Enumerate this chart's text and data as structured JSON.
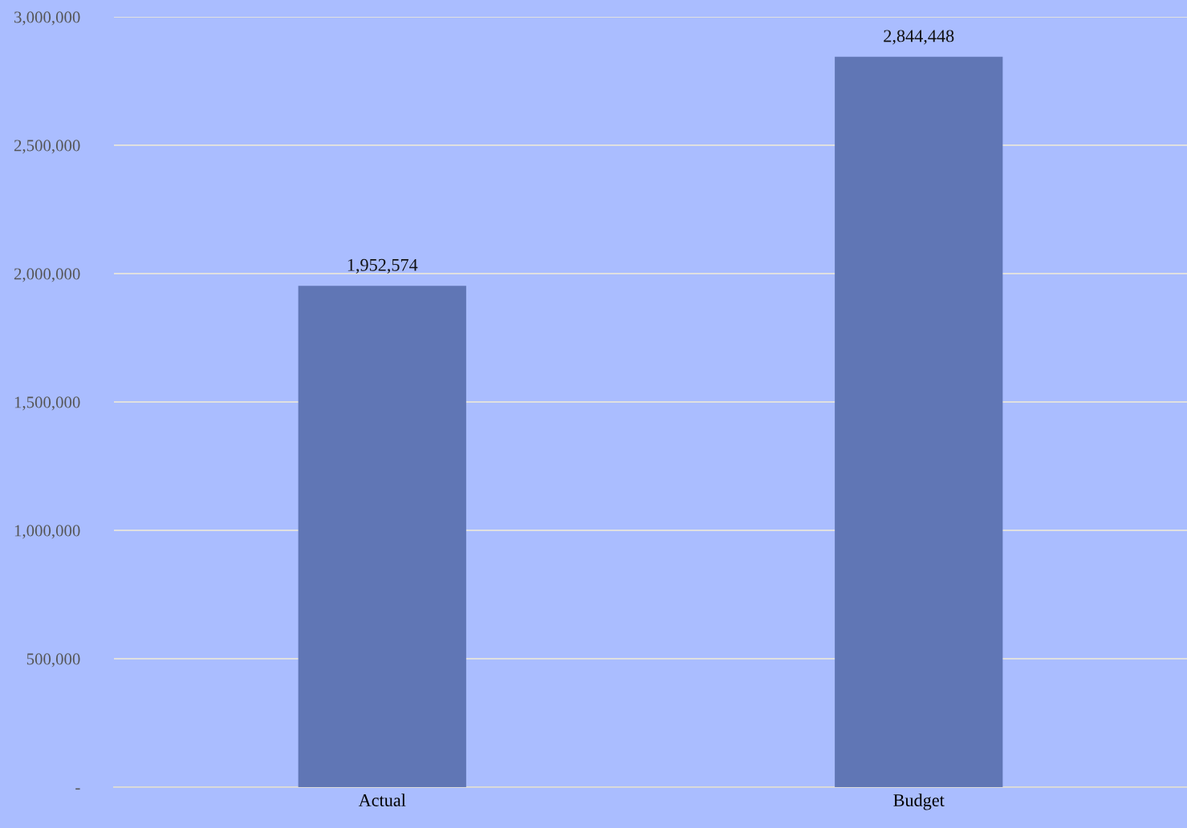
{
  "chart_data": {
    "type": "bar",
    "categories": [
      "Actual",
      "Budget"
    ],
    "values": [
      1952574,
      2844448
    ],
    "color": "#6076b5",
    "ylim": [
      0,
      3000000
    ],
    "yticks": [
      {
        "value": 0,
        "label": "-"
      },
      {
        "value": 500000,
        "label": "500,000"
      },
      {
        "value": 1000000,
        "label": "1,000,000"
      },
      {
        "value": 1500000,
        "label": "1,500,000"
      },
      {
        "value": 2000000,
        "label": "2,000,000"
      },
      {
        "value": 2500000,
        "label": "2,500,000"
      },
      {
        "value": 3000000,
        "label": "3,000,000"
      }
    ],
    "grid": "y",
    "value_labels": [
      "1,952,574",
      "2,844,448"
    ]
  }
}
